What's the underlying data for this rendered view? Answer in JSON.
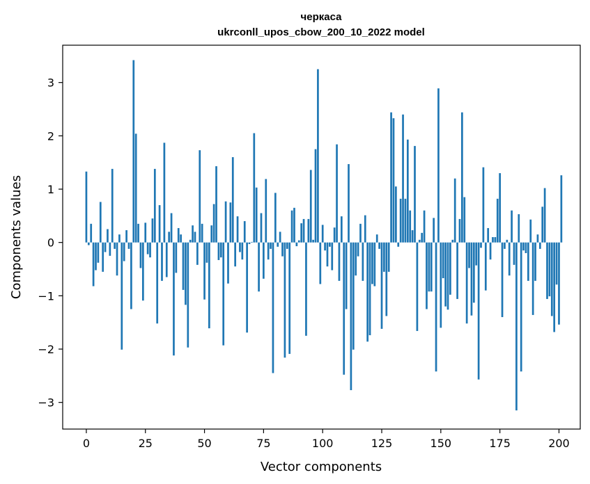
{
  "chart_data": {
    "type": "bar",
    "title": "черкаса",
    "subtitle": "ukrconll_upos_cbow_200_10_2022 model",
    "xlabel": "Vector components",
    "ylabel": "Components values",
    "xlim": [
      -10,
      209
    ],
    "ylim": [
      -3.5,
      3.7
    ],
    "xticks": [
      0,
      25,
      50,
      75,
      100,
      125,
      150,
      175,
      200
    ],
    "yticks": [
      -3,
      -2,
      -1,
      0,
      1,
      2,
      3
    ],
    "ytick_labels": [
      "−3",
      "−2",
      "−1",
      "0",
      "1",
      "2",
      "3"
    ],
    "grid": false,
    "bar_color": "#1f77b4",
    "values": [
      1.33,
      -0.05,
      0.35,
      -0.82,
      -0.52,
      -0.38,
      0.76,
      -0.55,
      -0.18,
      0.25,
      -0.25,
      1.38,
      -0.12,
      -0.62,
      0.15,
      -2.01,
      -0.35,
      0.23,
      -0.12,
      -1.25,
      3.42,
      2.04,
      0.35,
      -0.48,
      -1.09,
      0.37,
      -0.22,
      -0.28,
      0.45,
      1.38,
      -1.52,
      0.7,
      -0.72,
      1.87,
      -0.65,
      0.2,
      0.55,
      -2.12,
      -0.57,
      0.27,
      0.15,
      -0.89,
      -1.17,
      -1.97,
      0.05,
      0.32,
      0.2,
      -0.42,
      1.73,
      0.35,
      -1.07,
      -0.38,
      -1.61,
      0.32,
      0.72,
      1.43,
      -0.33,
      -0.28,
      -1.93,
      0.77,
      -0.77,
      0.75,
      1.6,
      -0.45,
      0.49,
      -0.18,
      -0.32,
      0.4,
      -1.69,
      -0.03,
      0.01,
      2.05,
      1.03,
      -0.92,
      0.55,
      -0.68,
      1.19,
      -0.32,
      -0.12,
      -2.45,
      0.93,
      -0.08,
      0.2,
      -0.26,
      -2.16,
      -0.12,
      -2.09,
      0.6,
      0.65,
      -0.07,
      0.04,
      0.36,
      0.44,
      -1.75,
      0.44,
      1.36,
      0.05,
      1.75,
      3.25,
      -0.78,
      0.33,
      -0.15,
      -0.45,
      -0.08,
      -0.52,
      0.28,
      1.84,
      -0.72,
      0.49,
      -2.48,
      -1.25,
      1.47,
      -2.77,
      -2.01,
      -0.62,
      -0.26,
      0.35,
      -0.72,
      0.51,
      -1.86,
      -1.74,
      -0.78,
      -0.82,
      0.15,
      -0.12,
      -1.62,
      -0.55,
      -1.38,
      -0.55,
      2.44,
      2.33,
      1.05,
      -0.08,
      0.82,
      2.4,
      0.82,
      1.93,
      0.6,
      0.23,
      1.81,
      -1.66,
      0.05,
      0.18,
      0.6,
      -1.25,
      -0.92,
      -0.92,
      0.46,
      -2.42,
      2.89,
      -1.6,
      -0.67,
      -1.2,
      -1.26,
      -0.98,
      0.05,
      1.2,
      -1.06,
      0.44,
      2.44,
      0.85,
      -1.52,
      -0.48,
      -1.37,
      -1.13,
      -0.43,
      -2.57,
      -0.1,
      1.41,
      -0.9,
      0.27,
      -0.32,
      0.1,
      0.1,
      0.82,
      1.3,
      -1.4,
      -0.12,
      0.05,
      -0.62,
      0.6,
      -0.42,
      -3.15,
      0.53,
      -2.42,
      -0.15,
      -0.2,
      -0.72,
      0.43,
      -1.36,
      -0.72,
      0.15,
      -0.12,
      0.67,
      1.02,
      -1.06,
      -1.01,
      -1.38,
      -1.68,
      -0.79,
      -1.54,
      1.26
    ]
  }
}
